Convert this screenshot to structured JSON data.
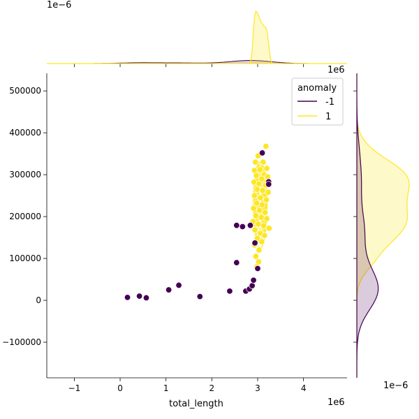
{
  "chart_data": {
    "type": "scatter",
    "kind": "jointplot",
    "title": "",
    "xlabel": "total_length",
    "ylabel": "",
    "x_scale_label": "1e6",
    "y_scale_label": "",
    "xlim": [
      -1.6,
      4.95
    ],
    "ylim": [
      -185000,
      542000
    ],
    "x_ticks": [
      -1,
      0,
      1,
      2,
      3,
      4
    ],
    "y_ticks": [
      -100000,
      0,
      100000,
      200000,
      300000,
      400000,
      500000
    ],
    "x_tick_labels": [
      "−1",
      "0",
      "1",
      "2",
      "3",
      "4"
    ],
    "y_tick_labels": [
      "−100000",
      "0",
      "100000",
      "200000",
      "300000",
      "400000",
      "500000"
    ],
    "grid": false,
    "legend": {
      "title": "anomaly",
      "placement": "top-right",
      "entries": [
        {
          "label": "-1",
          "color": "#440154"
        },
        {
          "label": "1",
          "color": "#fde725"
        }
      ]
    },
    "marginals": {
      "top_scale_label": "1e−6",
      "right_scale_label": "1e−6"
    },
    "series": [
      {
        "name": "-1",
        "color": "#440154",
        "points": [
          {
            "x": 0.16,
            "y": 7000
          },
          {
            "x": 0.42,
            "y": 10000
          },
          {
            "x": 0.57,
            "y": 6000
          },
          {
            "x": 1.06,
            "y": 25000
          },
          {
            "x": 1.28,
            "y": 36000
          },
          {
            "x": 1.74,
            "y": 9000
          },
          {
            "x": 2.39,
            "y": 22000
          },
          {
            "x": 2.54,
            "y": 90000
          },
          {
            "x": 2.54,
            "y": 179000
          },
          {
            "x": 2.67,
            "y": 176000
          },
          {
            "x": 2.74,
            "y": 22000
          },
          {
            "x": 2.82,
            "y": 27000
          },
          {
            "x": 2.84,
            "y": 179000
          },
          {
            "x": 2.88,
            "y": 35000
          },
          {
            "x": 2.91,
            "y": 48000
          },
          {
            "x": 2.94,
            "y": 137000
          },
          {
            "x": 3.0,
            "y": 76000
          },
          {
            "x": 3.1,
            "y": 352000
          },
          {
            "x": 3.24,
            "y": 283000
          },
          {
            "x": 3.24,
            "y": 277000
          }
        ]
      },
      {
        "name": "1",
        "color": "#fde725",
        "points": [
          {
            "x": 2.95,
            "y": 330000
          },
          {
            "x": 3.01,
            "y": 345000
          },
          {
            "x": 3.12,
            "y": 330000
          },
          {
            "x": 3.2,
            "y": 315000
          },
          {
            "x": 2.93,
            "y": 310000
          },
          {
            "x": 3.05,
            "y": 312000
          },
          {
            "x": 3.14,
            "y": 300000
          },
          {
            "x": 2.97,
            "y": 298000
          },
          {
            "x": 3.09,
            "y": 290000
          },
          {
            "x": 3.22,
            "y": 295000
          },
          {
            "x": 2.92,
            "y": 282000
          },
          {
            "x": 3.03,
            "y": 278000
          },
          {
            "x": 3.17,
            "y": 275000
          },
          {
            "x": 2.99,
            "y": 265000
          },
          {
            "x": 3.11,
            "y": 262000
          },
          {
            "x": 3.23,
            "y": 258000
          },
          {
            "x": 2.93,
            "y": 250000
          },
          {
            "x": 3.06,
            "y": 245000
          },
          {
            "x": 3.19,
            "y": 240000
          },
          {
            "x": 2.98,
            "y": 232000
          },
          {
            "x": 3.1,
            "y": 228000
          },
          {
            "x": 2.91,
            "y": 220000
          },
          {
            "x": 3.04,
            "y": 215000
          },
          {
            "x": 3.16,
            "y": 210000
          },
          {
            "x": 2.96,
            "y": 202000
          },
          {
            "x": 3.08,
            "y": 198000
          },
          {
            "x": 3.2,
            "y": 195000
          },
          {
            "x": 2.9,
            "y": 188000
          },
          {
            "x": 3.01,
            "y": 182000
          },
          {
            "x": 3.13,
            "y": 178000
          },
          {
            "x": 3.25,
            "y": 172000
          },
          {
            "x": 2.94,
            "y": 168000
          },
          {
            "x": 3.06,
            "y": 160000
          },
          {
            "x": 3.15,
            "y": 155000
          },
          {
            "x": 2.99,
            "y": 148000
          },
          {
            "x": 3.09,
            "y": 140000
          },
          {
            "x": 2.93,
            "y": 132000
          },
          {
            "x": 3.03,
            "y": 120000
          },
          {
            "x": 2.96,
            "y": 105000
          },
          {
            "x": 3.02,
            "y": 92000
          },
          {
            "x": 2.98,
            "y": 80000
          },
          {
            "x": 3.18,
            "y": 368000
          }
        ]
      }
    ]
  }
}
